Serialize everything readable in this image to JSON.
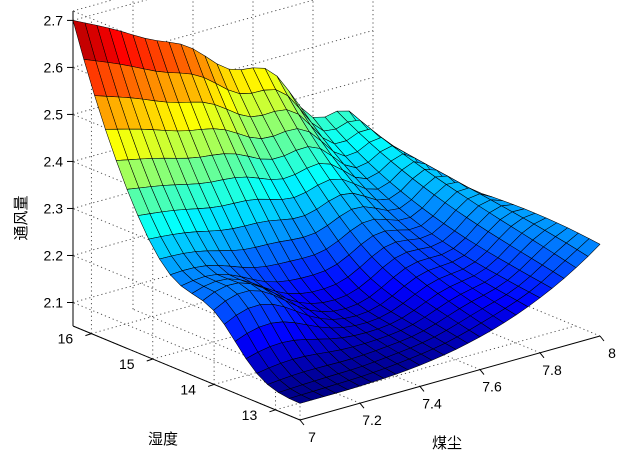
{
  "chart_data": {
    "type": "surface",
    "zlabel": "通风量",
    "ylabel": "湿度",
    "xlabel": "煤尘",
    "xlim": [
      7,
      8
    ],
    "ylim": [
      12.6,
      16.3
    ],
    "zlim": [
      2.05,
      2.72
    ],
    "xticks": [
      "7",
      "7.2",
      "7.4",
      "7.6",
      "7.8",
      "8"
    ],
    "yticks": [
      "13",
      "14",
      "15",
      "16"
    ],
    "zticks": [
      "2.1",
      "2.2",
      "2.3",
      "2.4",
      "2.5",
      "2.6",
      "2.7"
    ],
    "grid": true,
    "colormap": "jet",
    "surface": {
      "x_range": [
        7.0,
        8.0
      ],
      "y_range": [
        12.6,
        16.3
      ],
      "nx": 25,
      "ny": 21,
      "description_values": {
        "corner_x7_y16.3": 2.7,
        "corner_x8_y16.3": 2.42,
        "corner_x8_y12.6": 2.3,
        "corner_x7_y12.6": 2.12,
        "min_near_x7.4_y14": 2.07
      }
    }
  }
}
